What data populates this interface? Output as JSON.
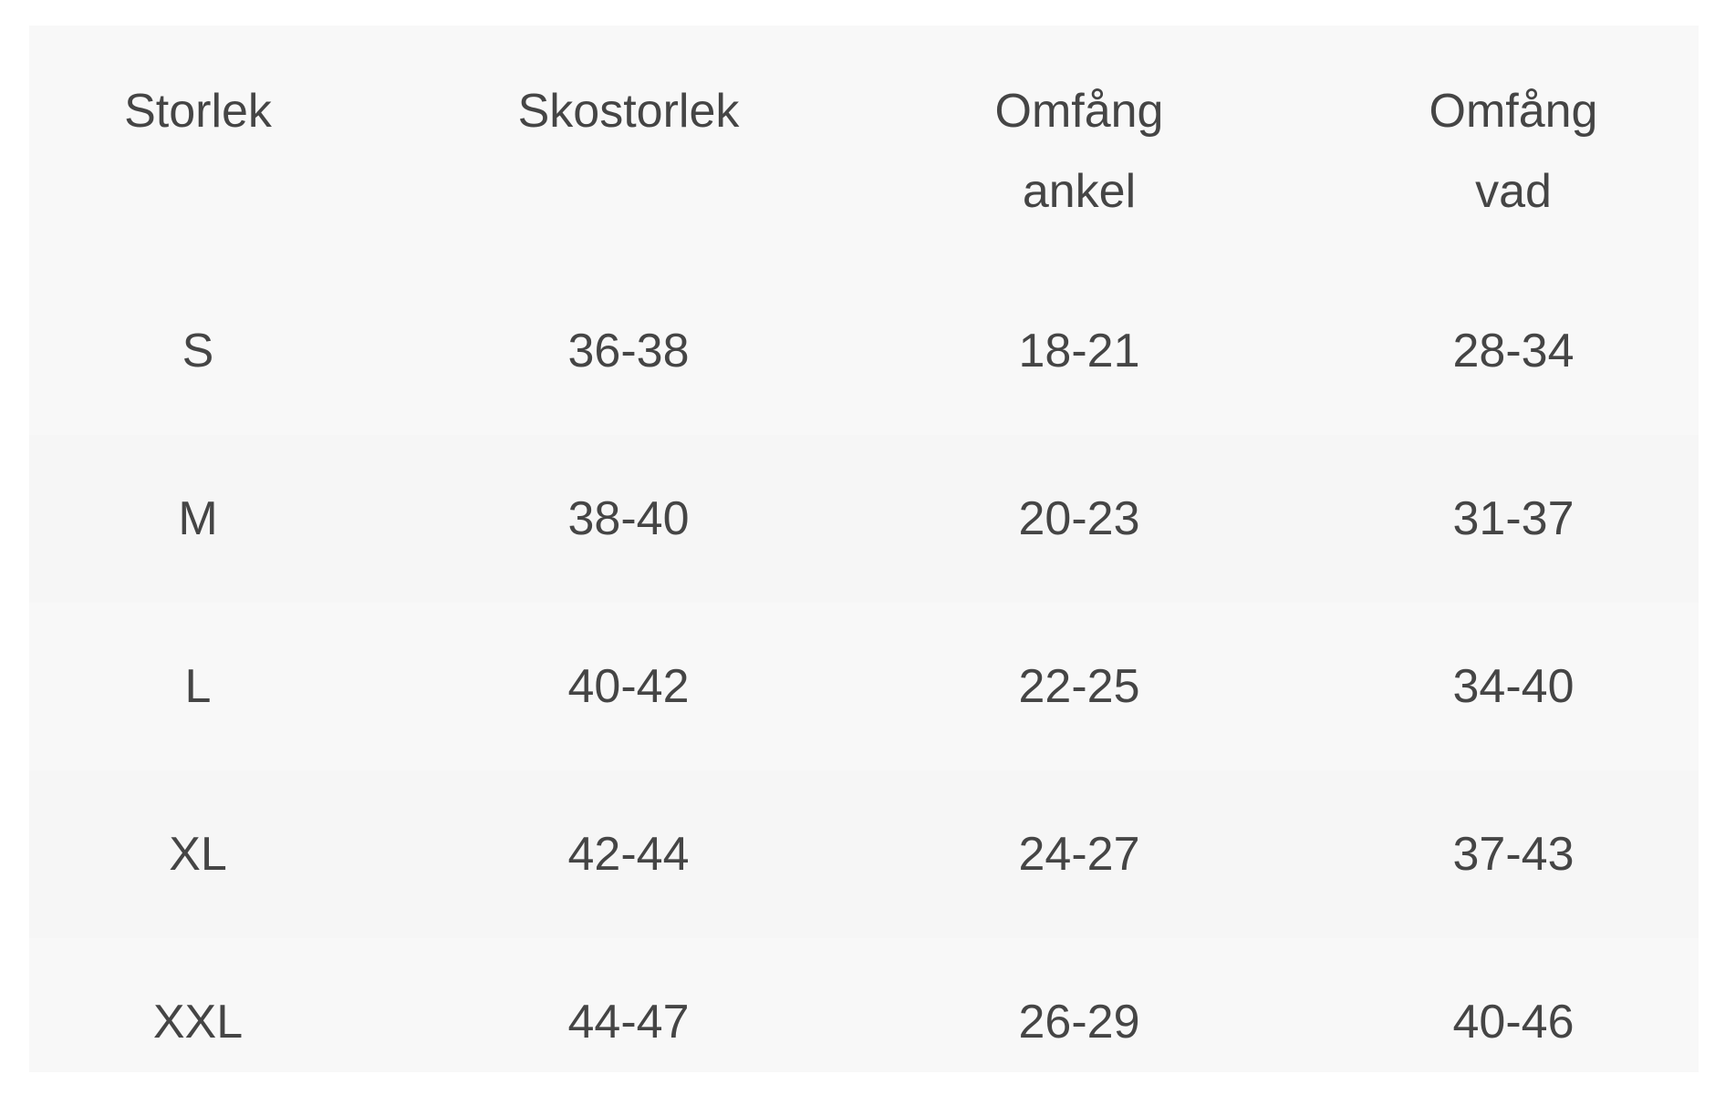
{
  "headers": [
    "Storlek",
    "Skostorlek",
    "Omfång\nankel",
    "Omfång\nvad"
  ],
  "header_lines": [
    [
      "Storlek"
    ],
    [
      "Skostorlek"
    ],
    [
      "Omfång",
      "ankel"
    ],
    [
      "Omfång",
      "vad"
    ]
  ],
  "rows": [
    [
      "S",
      "36-38",
      "18-21",
      "28-34"
    ],
    [
      "M",
      "38-40",
      "20-23",
      "31-37"
    ],
    [
      "L",
      "40-42",
      "22-25",
      "34-40"
    ],
    [
      "XL",
      "42-44",
      "24-27",
      "37-43"
    ],
    [
      "XXL",
      "44-47",
      "26-29",
      "40-46"
    ]
  ],
  "colors": {
    "background": "#f8f8f8",
    "text": "#454545"
  }
}
